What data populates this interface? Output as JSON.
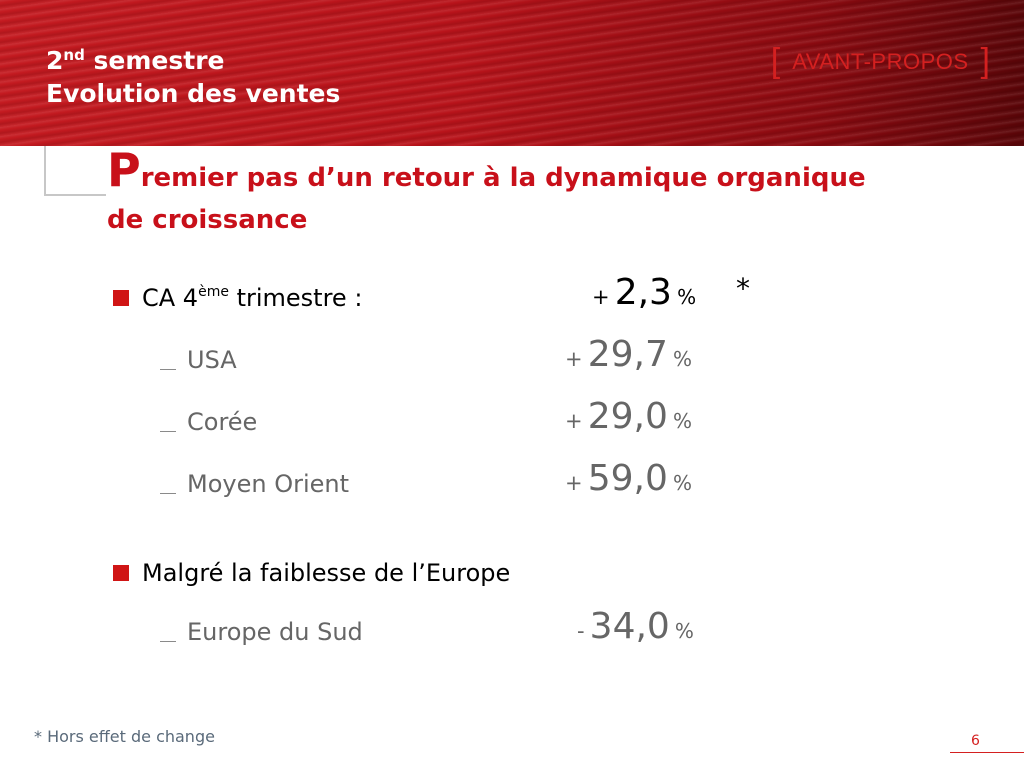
{
  "header": {
    "line1_prefix": "2",
    "line1_sup": "nd",
    "line1_suffix": " semestre",
    "line2": "Evolution des ventes",
    "section_open": "[",
    "section_label": "AVANT-PROPOS",
    "section_close": "]"
  },
  "slide": {
    "title_cap": "P",
    "title_rest": "remier pas d’un retour à la dynamique organique",
    "title_line2": "de croissance"
  },
  "bullets": [
    {
      "label_prefix": "CA 4",
      "label_sup": "ème",
      "label_suffix": " trimestre :",
      "sign": "+",
      "value": "2,3",
      "unit": "%",
      "asterisk": "*"
    },
    {
      "label": "Malgré la faiblesse de l’Europe"
    }
  ],
  "sub_items_1": [
    {
      "label": "USA",
      "sign": "+",
      "value": "29,7",
      "unit": "%"
    },
    {
      "label": "Corée",
      "sign": "+",
      "value": "29,0",
      "unit": "%"
    },
    {
      "label": "Moyen Orient",
      "sign": "+",
      "value": "59,0",
      "unit": "%"
    }
  ],
  "sub_items_2": [
    {
      "label": "Europe du Sud",
      "sign": "-",
      "value": "34,0",
      "unit": "%"
    }
  ],
  "footer": {
    "footnote": "* Hors effet de change",
    "page_number": "6"
  }
}
